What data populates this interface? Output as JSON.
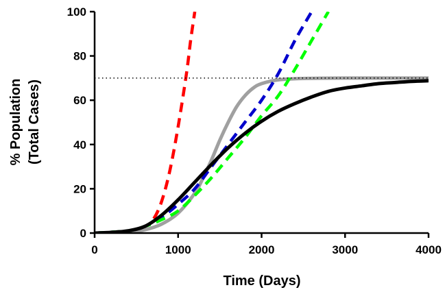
{
  "chart_data": {
    "type": "line",
    "xlabel": "Time (Days)",
    "ylabel_lines": [
      "% Population",
      "(Total Cases)"
    ],
    "xlim": [
      0,
      4000
    ],
    "ylim": [
      0,
      100
    ],
    "xticks": [
      "0",
      "1000",
      "2000",
      "3000",
      "4000"
    ],
    "yticks": [
      "0",
      "20",
      "40",
      "60",
      "80",
      "100"
    ],
    "reference_line": {
      "y": 70,
      "style": "dotted",
      "color": "#000000"
    },
    "series": [
      {
        "color": "#ff0000",
        "style": "dashed",
        "points": [
          [
            0,
            0
          ],
          [
            400,
            1
          ],
          [
            600,
            3
          ],
          [
            700,
            6
          ],
          [
            800,
            14
          ],
          [
            900,
            28
          ],
          [
            1000,
            48
          ],
          [
            1100,
            72
          ],
          [
            1150,
            87
          ],
          [
            1200,
            100
          ]
        ]
      },
      {
        "color": "#0000cc",
        "style": "dashed",
        "points": [
          [
            0,
            0
          ],
          [
            400,
            1
          ],
          [
            600,
            3
          ],
          [
            800,
            7
          ],
          [
            1000,
            13
          ],
          [
            1200,
            20
          ],
          [
            1400,
            30
          ],
          [
            1600,
            40
          ],
          [
            1800,
            50
          ],
          [
            2000,
            60
          ],
          [
            2200,
            72
          ],
          [
            2400,
            87
          ],
          [
            2600,
            100
          ]
        ]
      },
      {
        "color": "#00ff00",
        "style": "dashed",
        "points": [
          [
            0,
            0
          ],
          [
            400,
            1
          ],
          [
            600,
            3
          ],
          [
            800,
            6
          ],
          [
            1000,
            10
          ],
          [
            1200,
            17
          ],
          [
            1400,
            25
          ],
          [
            1600,
            34
          ],
          [
            1800,
            43
          ],
          [
            2000,
            53
          ],
          [
            2200,
            62
          ],
          [
            2400,
            74
          ],
          [
            2600,
            87
          ],
          [
            2800,
            100
          ]
        ]
      },
      {
        "color": "#a0a0a0",
        "style": "solid",
        "points": [
          [
            0,
            0
          ],
          [
            400,
            0.5
          ],
          [
            600,
            1.5
          ],
          [
            800,
            4
          ],
          [
            1000,
            9
          ],
          [
            1200,
            18
          ],
          [
            1300,
            25
          ],
          [
            1400,
            33
          ],
          [
            1500,
            42
          ],
          [
            1600,
            50
          ],
          [
            1700,
            57
          ],
          [
            1800,
            62
          ],
          [
            1900,
            65.5
          ],
          [
            2000,
            67.5
          ],
          [
            2200,
            69.2
          ],
          [
            2500,
            69.8
          ],
          [
            3000,
            70
          ],
          [
            4000,
            70
          ]
        ]
      },
      {
        "color": "#000000",
        "style": "solid",
        "points": [
          [
            0,
            0
          ],
          [
            200,
            0.3
          ],
          [
            400,
            1
          ],
          [
            600,
            3
          ],
          [
            800,
            8
          ],
          [
            1000,
            15
          ],
          [
            1200,
            23
          ],
          [
            1400,
            31
          ],
          [
            1600,
            38.5
          ],
          [
            1800,
            45
          ],
          [
            2000,
            50.5
          ],
          [
            2200,
            55
          ],
          [
            2400,
            58.5
          ],
          [
            2600,
            61.5
          ],
          [
            2800,
            64
          ],
          [
            3000,
            65.5
          ],
          [
            3200,
            66.5
          ],
          [
            3400,
            67.5
          ],
          [
            3600,
            68
          ],
          [
            3800,
            68.5
          ],
          [
            4000,
            68.8
          ]
        ]
      }
    ]
  }
}
